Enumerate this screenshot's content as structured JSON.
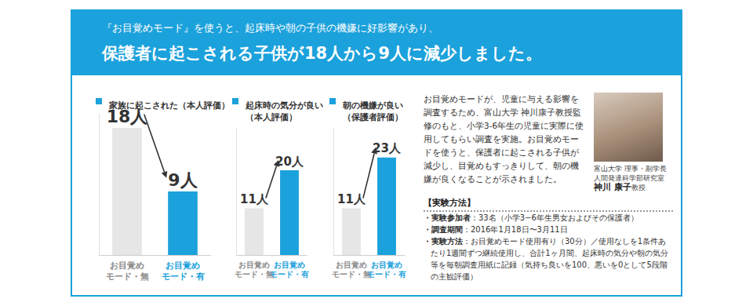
{
  "header": {
    "line1": "『お目覚めモード』を使うと、起床時や朝の子供の機嫌に好影響があり、",
    "line2": "保護者に起こされる子供が18人から9人に減少しました。"
  },
  "chart_data": [
    {
      "type": "bar",
      "title": "家族に起こされた（本人評価）",
      "categories": [
        "お目覚め\nモード・無",
        "お目覚め\nモード・有"
      ],
      "values": [
        18,
        9
      ],
      "value_labels": [
        "18人",
        "9人"
      ],
      "colors": [
        "#e6e6e6",
        "#1ba1db"
      ],
      "ylim": [
        0,
        20
      ],
      "data_labels": true,
      "tick_labels": "x",
      "grid": false
    },
    {
      "type": "bar",
      "title": "起床時の気分が良い\n（本人評価）",
      "categories": [
        "お目覚め\nモード・無",
        "お目覚め\nモード・有"
      ],
      "values": [
        11,
        20
      ],
      "value_labels": [
        "11人",
        "20人"
      ],
      "colors": [
        "#e6e6e6",
        "#1ba1db"
      ],
      "ylim": [
        0,
        30
      ],
      "data_labels": true,
      "tick_labels": "x",
      "grid": false
    },
    {
      "type": "bar",
      "title": "朝の機嫌が良い\n（保護者評価）",
      "categories": [
        "お目覚め\nモード・無",
        "お目覚め\nモード・有"
      ],
      "values": [
        11,
        23
      ],
      "value_labels": [
        "11人",
        "23人"
      ],
      "colors": [
        "#e6e6e6",
        "#1ba1db"
      ],
      "ylim": [
        0,
        30
      ],
      "data_labels": true,
      "tick_labels": "x",
      "grid": false
    }
  ],
  "description": "お目覚めモードが、児童に与える影響を調査するため、富山大学 神川康子教授監修のもと、小学3-6年生の児童に実際に使用してもらい調査を実施。お目覚めモードを使うと、保護者に起こされる子供が減少し、目覚めもすっきりして、朝の機嫌が良くなることが示されました。",
  "photo_caption": {
    "lines": [
      "富山大学 理事・副学長",
      "人間発達科学部研究室"
    ],
    "name": "神川 康子",
    "title": "教授"
  },
  "method": {
    "heading": "【実験方法】",
    "items": [
      {
        "label": "・実験参加者",
        "text": "：33名（小学3−6年生男女およびその保護者）"
      },
      {
        "label": "・調査期間",
        "text": "：2016年1月18日〜3月11日"
      },
      {
        "label": "・実験方法",
        "text": "：お目覚めモード使用有り（30分）／使用なしを1条件あたり1週間ずつ継続使用し、合計1ヶ月間、起床時の気分や朝の気分等を毎朝調査用紙に記録（気持ち良いを100、悪いを0として5段階の主観評価）"
      }
    ]
  }
}
